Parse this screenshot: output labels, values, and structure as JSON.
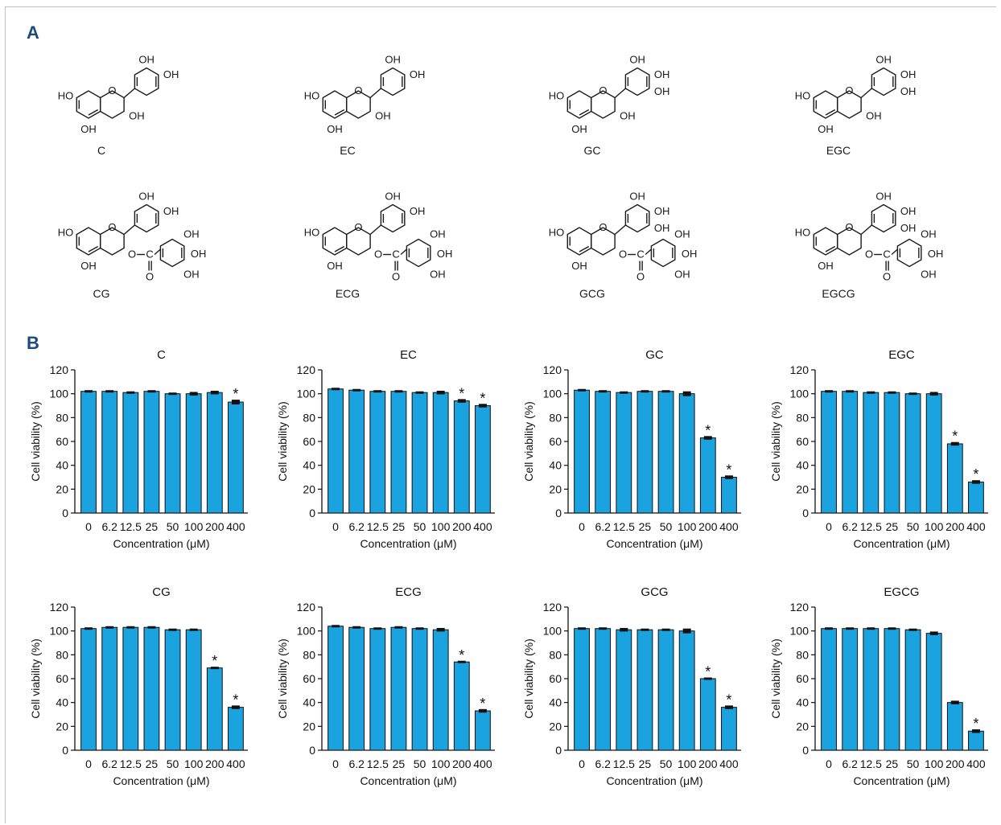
{
  "panels": {
    "a": "A",
    "b": "B"
  },
  "molecules": [
    {
      "name": "C",
      "galloyl": false,
      "extra_oh": false
    },
    {
      "name": "EC",
      "galloyl": false,
      "extra_oh": false
    },
    {
      "name": "GC",
      "galloyl": false,
      "extra_oh": true
    },
    {
      "name": "EGC",
      "galloyl": false,
      "extra_oh": true
    },
    {
      "name": "CG",
      "galloyl": true,
      "extra_oh": false
    },
    {
      "name": "ECG",
      "galloyl": true,
      "extra_oh": false
    },
    {
      "name": "GCG",
      "galloyl": true,
      "extra_oh": true
    },
    {
      "name": "EGCG",
      "galloyl": true,
      "extra_oh": true
    }
  ],
  "structure_labels": {
    "oh": "OH",
    "ho": "HO",
    "o": "O",
    "c": "C"
  },
  "chart_data": [
    {
      "type": "bar",
      "title": "C",
      "xlabel": "Concentration (μM)",
      "ylabel": "Cell viability (%)",
      "ylim": [
        0,
        120
      ],
      "yticks": [
        0,
        20,
        40,
        60,
        80,
        100,
        120
      ],
      "categories": [
        "0",
        "6.2",
        "12.5",
        "25",
        "50",
        "100",
        "200",
        "400"
      ],
      "values": [
        102,
        102,
        101,
        102,
        100,
        100,
        101,
        93
      ],
      "errors": [
        1,
        1,
        1,
        1,
        1,
        1.5,
        1.5,
        2
      ],
      "significant": [
        false,
        false,
        false,
        false,
        false,
        false,
        false,
        true
      ],
      "bar_color": "#1aa3df"
    },
    {
      "type": "bar",
      "title": "EC",
      "xlabel": "Concentration (μM)",
      "ylabel": "Cell viability (%)",
      "ylim": [
        0,
        120
      ],
      "yticks": [
        0,
        20,
        40,
        60,
        80,
        100,
        120
      ],
      "categories": [
        "0",
        "6.2",
        "12.5",
        "25",
        "50",
        "100",
        "200",
        "400"
      ],
      "values": [
        104,
        103,
        102,
        102,
        101,
        101,
        94,
        90
      ],
      "errors": [
        1,
        1,
        1,
        1,
        1,
        1.5,
        1.5,
        1.5
      ],
      "significant": [
        false,
        false,
        false,
        false,
        false,
        false,
        true,
        true
      ],
      "bar_color": "#1aa3df"
    },
    {
      "type": "bar",
      "title": "GC",
      "xlabel": "Concentration (μM)",
      "ylabel": "Cell viability (%)",
      "ylim": [
        0,
        120
      ],
      "yticks": [
        0,
        20,
        40,
        60,
        80,
        100,
        120
      ],
      "categories": [
        "0",
        "6.2",
        "12.5",
        "25",
        "50",
        "100",
        "200",
        "400"
      ],
      "values": [
        103,
        102,
        101,
        102,
        102,
        100,
        63,
        30
      ],
      "errors": [
        1,
        1,
        1,
        1,
        1,
        2,
        1.5,
        1.5
      ],
      "significant": [
        false,
        false,
        false,
        false,
        false,
        false,
        true,
        true
      ],
      "bar_color": "#1aa3df"
    },
    {
      "type": "bar",
      "title": "EGC",
      "xlabel": "Concentration (μM)",
      "ylabel": "Cell viability (%)",
      "ylim": [
        0,
        120
      ],
      "yticks": [
        0,
        20,
        40,
        60,
        80,
        100,
        120
      ],
      "categories": [
        "0",
        "6.2",
        "12.5",
        "25",
        "50",
        "100",
        "200",
        "400"
      ],
      "values": [
        102,
        102,
        101,
        101,
        100,
        100,
        58,
        26
      ],
      "errors": [
        1,
        1,
        1,
        1,
        1,
        1.5,
        1.5,
        1.5
      ],
      "significant": [
        false,
        false,
        false,
        false,
        false,
        false,
        true,
        true
      ],
      "bar_color": "#1aa3df"
    },
    {
      "type": "bar",
      "title": "CG",
      "xlabel": "Concentration (μM)",
      "ylabel": "Cell viability (%)",
      "ylim": [
        0,
        120
      ],
      "yticks": [
        0,
        20,
        40,
        60,
        80,
        100,
        120
      ],
      "categories": [
        "0",
        "6.2",
        "12.5",
        "25",
        "50",
        "100",
        "200",
        "400"
      ],
      "values": [
        102,
        103,
        103,
        103,
        101,
        101,
        69,
        36
      ],
      "errors": [
        1,
        1,
        1,
        1,
        1,
        1,
        1,
        1.5
      ],
      "significant": [
        false,
        false,
        false,
        false,
        false,
        false,
        true,
        true
      ],
      "bar_color": "#1aa3df"
    },
    {
      "type": "bar",
      "title": "ECG",
      "xlabel": "Concentration (μM)",
      "ylabel": "Cell viability (%)",
      "ylim": [
        0,
        120
      ],
      "yticks": [
        0,
        20,
        40,
        60,
        80,
        100,
        120
      ],
      "categories": [
        "0",
        "6.2",
        "12.5",
        "25",
        "50",
        "100",
        "200",
        "400"
      ],
      "values": [
        104,
        103,
        102,
        103,
        102,
        101,
        74,
        33
      ],
      "errors": [
        1,
        1,
        1,
        1,
        1,
        1.5,
        1,
        1.5
      ],
      "significant": [
        false,
        false,
        false,
        false,
        false,
        false,
        true,
        true
      ],
      "bar_color": "#1aa3df"
    },
    {
      "type": "bar",
      "title": "GCG",
      "xlabel": "Concentration (μM)",
      "ylabel": "Cell viability (%)",
      "ylim": [
        0,
        120
      ],
      "yticks": [
        0,
        20,
        40,
        60,
        80,
        100,
        120
      ],
      "categories": [
        "0",
        "6.2",
        "12.5",
        "25",
        "50",
        "100",
        "200",
        "400"
      ],
      "values": [
        102,
        102,
        101,
        101,
        101,
        100,
        60,
        36
      ],
      "errors": [
        1,
        1,
        1.5,
        1,
        1,
        2,
        1,
        1.5
      ],
      "significant": [
        false,
        false,
        false,
        false,
        false,
        false,
        true,
        true
      ],
      "bar_color": "#1aa3df"
    },
    {
      "type": "bar",
      "title": "EGCG",
      "xlabel": "Concentration (μM)",
      "ylabel": "Cell viability (%)",
      "ylim": [
        0,
        120
      ],
      "yticks": [
        0,
        20,
        40,
        60,
        80,
        100,
        120
      ],
      "categories": [
        "0",
        "6.2",
        "12.5",
        "25",
        "50",
        "100",
        "200",
        "400"
      ],
      "values": [
        102,
        102,
        102,
        102,
        101,
        98,
        40,
        16
      ],
      "errors": [
        1,
        1,
        1,
        1,
        1,
        1.5,
        1.5,
        1.5
      ],
      "significant": [
        false,
        false,
        false,
        false,
        false,
        false,
        false,
        true
      ],
      "bar_color": "#1aa3df"
    }
  ]
}
